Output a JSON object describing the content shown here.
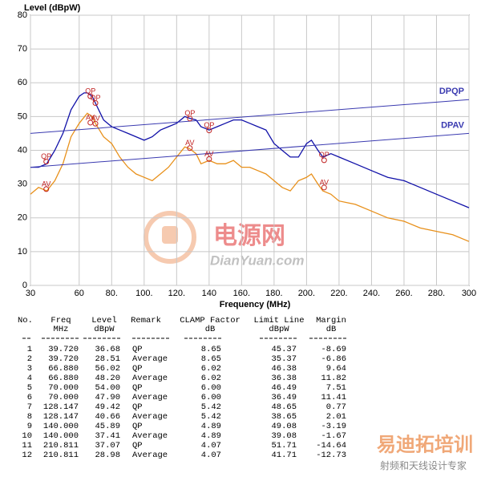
{
  "chart_data": {
    "type": "line",
    "ylabel": "Level (dBpW)",
    "xlabel": "Frequency (MHz)",
    "xlim": [
      30,
      300
    ],
    "ylim": [
      0,
      80
    ],
    "xticks": [
      30,
      60,
      {
        "value": 80,
        "label": "80."
      },
      {
        "value": 100,
        "label": "100."
      },
      {
        "value": 120,
        "label": "120."
      },
      140,
      {
        "value": 160,
        "label": "160."
      },
      {
        "value": 180,
        "label": "180."
      },
      {
        "value": 200,
        "label": "200."
      },
      {
        "value": 220,
        "label": "220."
      },
      {
        "value": 240,
        "label": "240."
      },
      {
        "value": 260,
        "label": "260."
      },
      {
        "value": 280,
        "label": "280."
      },
      300
    ],
    "yticks": [
      0,
      10,
      20,
      30,
      40,
      50,
      60,
      70,
      80
    ],
    "grid": true,
    "series": [
      {
        "name": "QP trace",
        "color": "#1010a8",
        "x": [
          30,
          35,
          40,
          45,
          50,
          55,
          60,
          63,
          65,
          68,
          70,
          75,
          80,
          85,
          90,
          95,
          100,
          105,
          110,
          115,
          120,
          125,
          128,
          132,
          135,
          140,
          145,
          150,
          155,
          160,
          165,
          170,
          175,
          180,
          185,
          190,
          195,
          200,
          203,
          207,
          210,
          215,
          220,
          230,
          240,
          250,
          260,
          270,
          280,
          290,
          300
        ],
        "values": [
          35,
          35,
          36,
          40,
          45,
          52,
          56,
          57,
          57,
          56,
          54,
          49,
          47,
          46,
          45,
          44,
          43,
          44,
          46,
          47,
          48,
          50,
          49.5,
          49,
          47,
          46,
          47,
          48,
          49,
          49,
          48,
          47,
          46,
          42,
          40,
          38,
          38,
          42,
          43,
          40,
          38,
          39,
          38,
          36,
          34,
          32,
          31,
          29,
          27,
          25,
          23
        ]
      },
      {
        "name": "AV trace",
        "color": "#e8901a",
        "x": [
          30,
          35,
          40,
          45,
          50,
          55,
          60,
          65,
          68,
          70,
          75,
          80,
          85,
          90,
          95,
          100,
          105,
          110,
          115,
          120,
          125,
          128,
          132,
          135,
          140,
          145,
          150,
          155,
          160,
          165,
          170,
          175,
          180,
          185,
          190,
          195,
          200,
          203,
          207,
          210,
          215,
          220,
          230,
          240,
          250,
          260,
          270,
          280,
          290,
          300
        ],
        "values": [
          27,
          29,
          28,
          31,
          36,
          44,
          48,
          51,
          50,
          48,
          44,
          42,
          38,
          35,
          33,
          32,
          31,
          33,
          35,
          38,
          41,
          40.5,
          39,
          36,
          37,
          36,
          36,
          37,
          35,
          35,
          34,
          33,
          31,
          29,
          28,
          31,
          32,
          33,
          30,
          28,
          27,
          25,
          24,
          22,
          20,
          19,
          17,
          16,
          15,
          13
        ]
      },
      {
        "name": "DPQP",
        "color": "#3a3ab0",
        "x": [
          30,
          300
        ],
        "values": [
          45,
          55
        ]
      },
      {
        "name": "DPAV",
        "color": "#3a3ab0",
        "x": [
          30,
          300
        ],
        "values": [
          35,
          45
        ]
      }
    ],
    "qp_points": {
      "label": "QP",
      "color": "#c02020",
      "x": [
        39.72,
        66.88,
        70,
        128.147,
        140,
        210.811
      ],
      "values": [
        36.68,
        56.02,
        54,
        49.42,
        45.89,
        37.07
      ]
    },
    "av_points": {
      "label": "AV",
      "color": "#c02020",
      "x": [
        39.72,
        66.88,
        70,
        128.147,
        140,
        210.811
      ],
      "values": [
        28.51,
        48.2,
        47.9,
        40.66,
        37.41,
        28.98
      ]
    }
  },
  "table": {
    "columns": [
      {
        "title": "No."
      },
      {
        "title": "Freq",
        "unit": "MHz"
      },
      {
        "title": "Level",
        "unit": "dBpW"
      },
      {
        "title": "Remark"
      },
      {
        "title": "CLAMP Factor",
        "unit": "dB"
      },
      {
        "title": "Limit Line",
        "unit": "dBpW"
      },
      {
        "title": "Margin",
        "unit": "dB"
      }
    ],
    "rows": [
      [
        "1",
        "39.720",
        "36.68",
        "QP",
        "8.65",
        "45.37",
        "-8.69"
      ],
      [
        "2",
        "39.720",
        "28.51",
        "Average",
        "8.65",
        "35.37",
        "-6.86"
      ],
      [
        "3",
        "66.880",
        "56.02",
        "QP",
        "6.02",
        "46.38",
        "9.64"
      ],
      [
        "4",
        "66.880",
        "48.20",
        "Average",
        "6.02",
        "36.38",
        "11.82"
      ],
      [
        "5",
        "70.000",
        "54.00",
        "QP",
        "6.00",
        "46.49",
        "7.51"
      ],
      [
        "6",
        "70.000",
        "47.90",
        "Average",
        "6.00",
        "36.49",
        "11.41"
      ],
      [
        "7",
        "128.147",
        "49.42",
        "QP",
        "5.42",
        "48.65",
        "0.77"
      ],
      [
        "8",
        "128.147",
        "40.66",
        "Average",
        "5.42",
        "38.65",
        "2.01"
      ],
      [
        "9",
        "140.000",
        "45.89",
        "QP",
        "4.89",
        "49.08",
        "-3.19"
      ],
      [
        "10",
        "140.000",
        "37.41",
        "Average",
        "4.89",
        "39.08",
        "-1.67"
      ],
      [
        "11",
        "210.811",
        "37.07",
        "QP",
        "4.07",
        "51.71",
        "-14.64"
      ],
      [
        "12",
        "210.811",
        "28.98",
        "Average",
        "4.07",
        "41.71",
        "-12.73"
      ]
    ]
  },
  "watermark": {
    "logo": "电源网",
    "site": "DianYuan.com",
    "brand": "易迪拓培训",
    "slogan": "射频和天线设计专家"
  }
}
